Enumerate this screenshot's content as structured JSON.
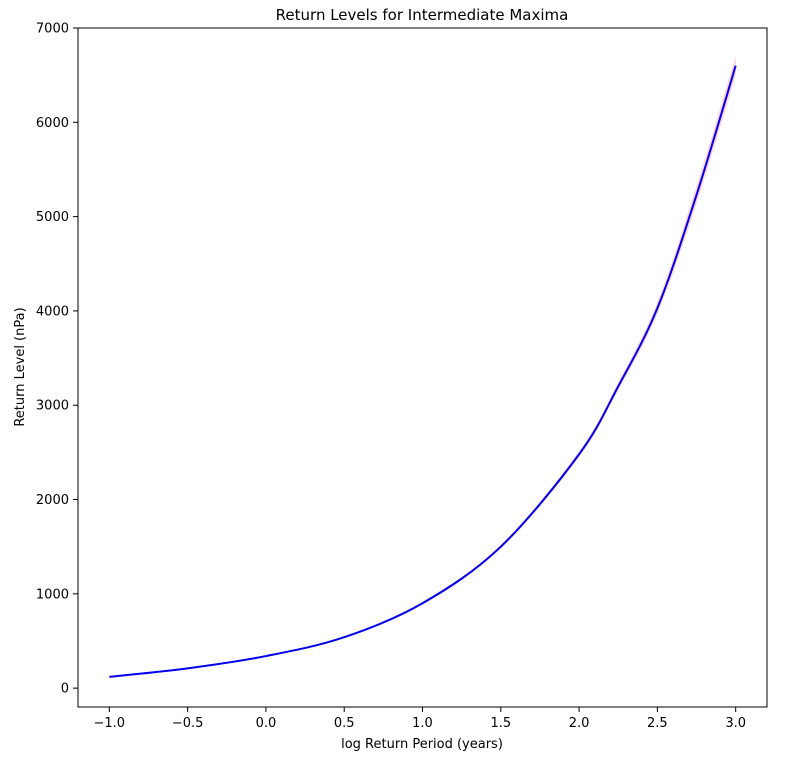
{
  "chart_data": {
    "type": "line",
    "title": "Return Levels for Intermediate Maxima",
    "xlabel": "log Return Period (years)",
    "ylabel": "Return Level (nPa)",
    "xlim": [
      -1.2,
      3.2
    ],
    "ylim": [
      -200,
      7000
    ],
    "xticks": [
      -1.0,
      -0.5,
      0.0,
      0.5,
      1.0,
      1.5,
      2.0,
      2.5,
      3.0
    ],
    "xtick_labels": [
      "−1.0",
      "−0.5",
      "0.0",
      "0.5",
      "1.0",
      "1.5",
      "2.0",
      "2.5",
      "3.0"
    ],
    "yticks": [
      0,
      1000,
      2000,
      3000,
      4000,
      5000,
      6000,
      7000
    ],
    "ytick_labels": [
      "0",
      "1000",
      "2000",
      "3000",
      "4000",
      "5000",
      "6000",
      "7000"
    ],
    "grid": false,
    "series": [
      {
        "color": "#0000ee",
        "x": [
          -1.0,
          -0.5,
          0.0,
          0.5,
          1.0,
          1.5,
          2.0,
          2.25,
          2.5,
          2.75,
          3.0
        ],
        "y": [
          120,
          210,
          340,
          540,
          900,
          1500,
          2480,
          3200,
          4030,
          5230,
          6600
        ]
      }
    ],
    "band": {
      "color": "#ff9999",
      "x": [
        -1.0,
        -0.5,
        0.0,
        0.5,
        1.0,
        1.5,
        2.0,
        2.25,
        2.5,
        2.75,
        3.0
      ],
      "lower": [
        115,
        205,
        335,
        530,
        885,
        1480,
        2450,
        3160,
        3970,
        5140,
        6500
      ],
      "upper": [
        125,
        215,
        345,
        550,
        915,
        1520,
        2510,
        3240,
        4090,
        5320,
        6700
      ]
    }
  }
}
